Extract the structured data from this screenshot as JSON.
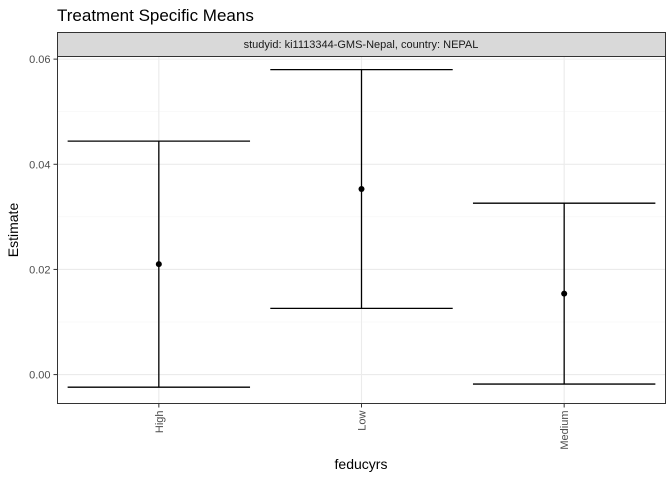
{
  "chart_data": {
    "type": "errorbar",
    "title": "Treatment Specific Means",
    "facet_label": "studyid: ki1113344-GMS-Nepal, country: NEPAL",
    "xlabel": "feducyrs",
    "ylabel": "Estimate",
    "categories": [
      "High",
      "Low",
      "Medium"
    ],
    "estimates": [
      0.021,
      0.0353,
      0.0154
    ],
    "ci_lower": [
      -0.0024,
      0.0126,
      -0.0018
    ],
    "ci_upper": [
      0.0444,
      0.058,
      0.0326
    ],
    "ylim": [
      -0.0055,
      0.0605
    ],
    "yticks": [
      0.0,
      0.02,
      0.04,
      0.06
    ],
    "ytick_labels": [
      "0.00",
      "0.02",
      "0.04",
      "0.06"
    ],
    "grid": true,
    "colors": {
      "panel_border": "#333333",
      "strip_fill": "#d9d9d9",
      "grid_major": "#ebebeb",
      "grid_minor": "#f5f5f5",
      "marks": "#000000"
    }
  }
}
